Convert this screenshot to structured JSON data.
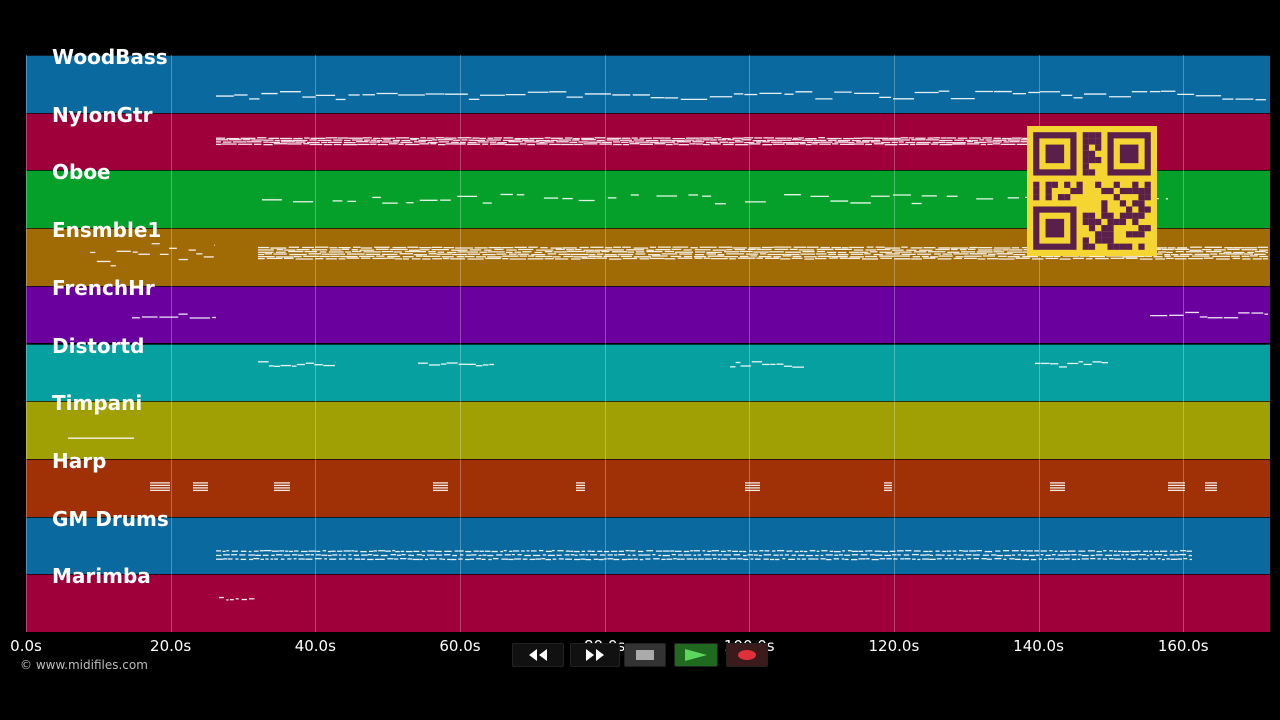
{
  "tracks": [
    {
      "name": "WoodBass",
      "color": "#0a6aa0"
    },
    {
      "name": "NylonGtr",
      "color": "#a0003a"
    },
    {
      "name": "Oboe",
      "color": "#05a02a"
    },
    {
      "name": "Ensmble1",
      "color": "#a06a05"
    },
    {
      "name": "FrenchHr",
      "color": "#6a009e"
    },
    {
      "name": "Distortd",
      "color": "#06a0a0"
    },
    {
      "name": "Timpani",
      "color": "#a0a005"
    },
    {
      "name": "Harp",
      "color": "#a03005"
    },
    {
      "name": "GM Drums",
      "color": "#0a6aa0"
    },
    {
      "name": "Marimba",
      "color": "#a0003a"
    }
  ],
  "timeline": {
    "ticks": [
      "0.0s",
      "20.0s",
      "40.0s",
      "60.0s",
      "80.0s",
      "100.0s",
      "120.0s",
      "140.0s",
      "160.0s"
    ],
    "tick_values": [
      0,
      20,
      40,
      60,
      80,
      100,
      120,
      140,
      160
    ],
    "range_seconds": [
      0,
      172
    ]
  },
  "copyright": "© www.midifiles.com",
  "transport": {
    "rewind_icon": "rewind-icon",
    "fast_forward_icon": "fast-forward-icon",
    "stop_icon": "stop-icon",
    "play_icon": "play-icon",
    "record_icon": "record-icon",
    "play_color": "#3cb83c",
    "record_color": "#e0303a"
  },
  "qr_code": {
    "color": "#f5d532",
    "fg": "#5a1f4a"
  }
}
